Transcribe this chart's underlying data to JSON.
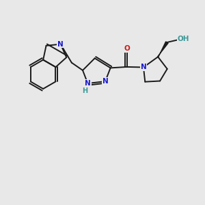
{
  "background_color": "#e8e8e8",
  "bond_color": "#1a1a1a",
  "N_color": "#1a1acc",
  "O_color": "#cc1a1a",
  "OH_color": "#3a9999",
  "font_size_atom": 7.5,
  "line_width": 1.4,
  "xlim": [
    0,
    10
  ],
  "ylim": [
    0,
    10
  ]
}
